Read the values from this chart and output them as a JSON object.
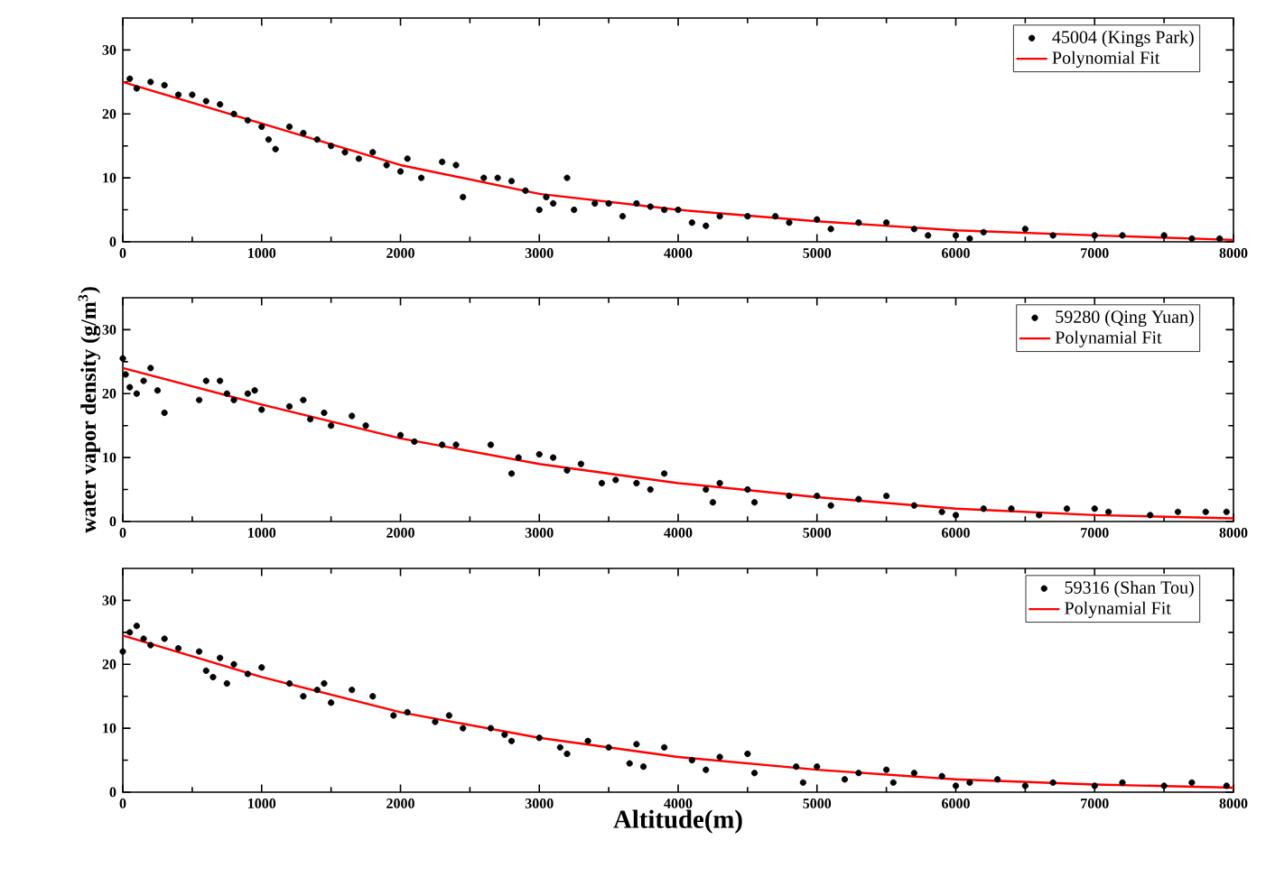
{
  "chart_data": [
    {
      "type": "scatter",
      "xlim": [
        0,
        8000
      ],
      "ylim": [
        0,
        35
      ],
      "xticks": [
        0,
        1000,
        2000,
        3000,
        4000,
        5000,
        6000,
        7000,
        8000
      ],
      "yticks": [
        0,
        10,
        20,
        30
      ],
      "legend": "top right",
      "grid": false,
      "series": [
        {
          "name": "45004 (Kings Park)",
          "marker": "circle",
          "color": "#000000",
          "x": [
            50,
            100,
            200,
            300,
            400,
            500,
            600,
            700,
            800,
            900,
            1000,
            1050,
            1100,
            1200,
            1300,
            1400,
            1500,
            1600,
            1700,
            1800,
            1900,
            2000,
            2050,
            2150,
            2300,
            2400,
            2450,
            2600,
            2700,
            2800,
            2900,
            3000,
            3050,
            3100,
            3200,
            3250,
            3400,
            3500,
            3600,
            3700,
            3800,
            3900,
            4000,
            4100,
            4200,
            4300,
            4500,
            4700,
            4800,
            5000,
            5100,
            5300,
            5500,
            5700,
            5800,
            6000,
            6100,
            6200,
            6500,
            6700,
            7000,
            7200,
            7500,
            7700,
            7900
          ],
          "values": [
            25.5,
            24,
            25,
            24.5,
            23,
            23,
            22,
            21.5,
            20,
            19,
            18,
            16,
            14.5,
            18,
            17,
            16,
            15,
            14,
            13,
            14,
            12,
            11,
            13,
            10,
            12.5,
            12,
            7,
            10,
            10,
            9.5,
            8,
            5,
            7,
            6,
            10,
            5,
            6,
            6,
            4,
            6,
            5.5,
            5,
            5,
            3,
            2.5,
            4,
            4,
            4,
            3,
            3.5,
            2,
            3,
            3,
            2,
            1,
            1,
            0.5,
            1.5,
            2,
            1,
            1,
            1,
            1,
            0.5,
            0.5
          ]
        },
        {
          "name": "Polynomial  Fit",
          "type": "line",
          "marker": "none",
          "color": "#ff0000",
          "x": [
            0,
            1000,
            2000,
            3000,
            4000,
            5000,
            6000,
            7000,
            8000
          ],
          "values": [
            25,
            18.5,
            12,
            7.5,
            5,
            3.2,
            1.8,
            1,
            0.3
          ]
        }
      ]
    },
    {
      "type": "scatter",
      "xlim": [
        0,
        8000
      ],
      "ylim": [
        0,
        35
      ],
      "xticks": [
        0,
        1000,
        2000,
        3000,
        4000,
        5000,
        6000,
        7000,
        8000
      ],
      "yticks": [
        0,
        10,
        20,
        30
      ],
      "legend": "top right",
      "grid": false,
      "ylabel": "water vapor density (g/m$^{3}$)",
      "series": [
        {
          "name": "59280 (Qing Yuan)",
          "marker": "circle",
          "color": "#000000",
          "x": [
            0,
            20,
            50,
            100,
            150,
            200,
            250,
            300,
            550,
            600,
            700,
            750,
            800,
            900,
            950,
            1000,
            1200,
            1300,
            1350,
            1450,
            1500,
            1650,
            1750,
            2000,
            2100,
            2300,
            2400,
            2650,
            2800,
            2850,
            3000,
            3100,
            3200,
            3300,
            3450,
            3550,
            3700,
            3800,
            3900,
            4200,
            4250,
            4300,
            4500,
            4550,
            4800,
            5000,
            5100,
            5300,
            5500,
            5700,
            5900,
            6000,
            6200,
            6400,
            6600,
            6800,
            7000,
            7100,
            7400,
            7600,
            7800,
            7950
          ],
          "values": [
            25.5,
            23,
            21,
            20,
            22,
            24,
            20.5,
            17,
            19,
            22,
            22,
            20,
            19,
            20,
            20.5,
            17.5,
            18,
            19,
            16,
            17,
            15,
            16.5,
            15,
            13.5,
            12.5,
            12,
            12,
            12,
            7.5,
            10,
            10.5,
            10,
            8,
            9,
            6,
            6.5,
            6,
            5,
            7.5,
            5,
            3,
            6,
            5,
            3,
            4,
            4,
            2.5,
            3.5,
            4,
            2.5,
            1.5,
            1,
            2,
            2,
            1,
            2,
            2,
            1.5,
            1,
            1.5,
            1.5,
            1.5
          ]
        },
        {
          "name": "Polynamial  Fit",
          "type": "line",
          "marker": "none",
          "color": "#ff0000",
          "x": [
            0,
            1000,
            2000,
            3000,
            4000,
            5000,
            6000,
            7000,
            8000
          ],
          "values": [
            24,
            18.3,
            13,
            9,
            6,
            3.8,
            2,
            1,
            0.5
          ]
        }
      ]
    },
    {
      "type": "scatter",
      "xlim": [
        0,
        8000
      ],
      "ylim": [
        0,
        35
      ],
      "xticks": [
        0,
        1000,
        2000,
        3000,
        4000,
        5000,
        6000,
        7000,
        8000
      ],
      "yticks": [
        0,
        10,
        20,
        30
      ],
      "legend": "top right",
      "grid": false,
      "xlabel": "Altitude(m)",
      "series": [
        {
          "name": "59316 (Shan Tou)",
          "marker": "circle",
          "color": "#000000",
          "x": [
            0,
            50,
            100,
            150,
            200,
            300,
            400,
            550,
            600,
            650,
            700,
            750,
            800,
            900,
            1000,
            1200,
            1300,
            1400,
            1450,
            1500,
            1650,
            1800,
            1950,
            2050,
            2250,
            2350,
            2450,
            2650,
            2750,
            2800,
            3000,
            3150,
            3200,
            3350,
            3500,
            3650,
            3700,
            3750,
            3900,
            4100,
            4200,
            4300,
            4500,
            4550,
            4850,
            4900,
            5000,
            5200,
            5300,
            5500,
            5550,
            5700,
            5900,
            6000,
            6100,
            6300,
            6500,
            6700,
            7000,
            7200,
            7500,
            7700,
            7950
          ],
          "values": [
            22,
            25,
            26,
            24,
            23,
            24,
            22.5,
            22,
            19,
            18,
            21,
            17,
            20,
            18.5,
            19.5,
            17,
            15,
            16,
            17,
            14,
            16,
            15,
            12,
            12.5,
            11,
            12,
            10,
            10,
            9,
            8,
            8.5,
            7,
            6,
            8,
            7,
            4.5,
            7.5,
            4,
            7,
            5,
            3.5,
            5.5,
            6,
            3,
            4,
            1.5,
            4,
            2,
            3,
            3.5,
            1.5,
            3,
            2.5,
            1,
            1.5,
            2,
            1,
            1.5,
            1,
            1.5,
            1,
            1.5,
            1
          ]
        },
        {
          "name": "Polynamial  Fit",
          "type": "line",
          "marker": "none",
          "color": "#ff0000",
          "x": [
            0,
            1000,
            2000,
            3000,
            4000,
            5000,
            6000,
            7000,
            8000
          ],
          "values": [
            24.5,
            18,
            12.5,
            8.5,
            5.5,
            3.5,
            2,
            1.2,
            0.7
          ]
        }
      ]
    }
  ]
}
